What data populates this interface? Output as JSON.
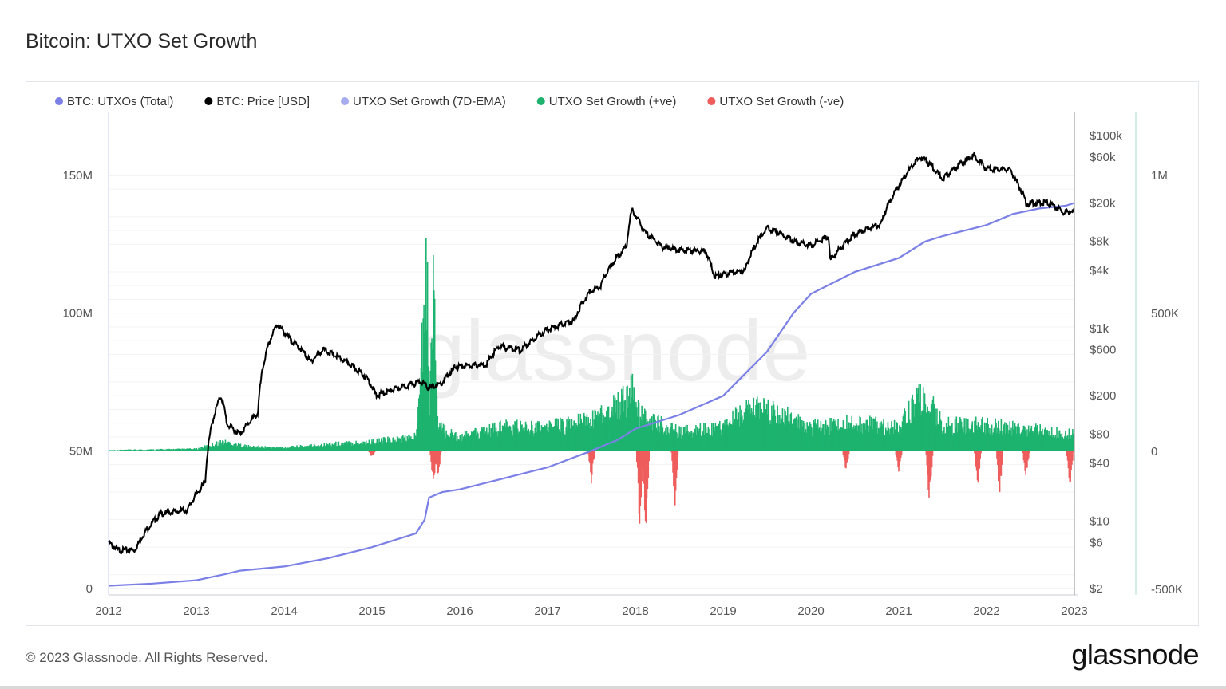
{
  "header": {
    "title": "Bitcoin: UTXO Set Growth"
  },
  "footer": {
    "copyright": "© 2023 Glassnode. All Rights Reserved.",
    "logo": "glassnode"
  },
  "watermark": "glassnode",
  "colors": {
    "utxos_total": "#7b80e6",
    "price": "#000000",
    "ema": "#a7abf0",
    "positive": "#1db36f",
    "negative": "#ee5c5c",
    "grid": "#eef0f3"
  },
  "chart_data": {
    "type": "line",
    "title": "Bitcoin: UTXO Set Growth",
    "legend_position": "top-left",
    "legend": [
      {
        "label": "BTC: UTXOs (Total)",
        "color": "#7b80e6"
      },
      {
        "label": "BTC: Price [USD]",
        "color": "#000000"
      },
      {
        "label": "UTXO Set Growth (7D-EMA)",
        "color": "#a7abf0",
        "hidden": true
      },
      {
        "label": "UTXO Set Growth (+ve)",
        "color": "#1db36f"
      },
      {
        "label": "UTXO Set Growth (-ve)",
        "color": "#ee5c5c"
      }
    ],
    "x_axis": {
      "type": "time",
      "range": [
        2012.0,
        2023.0
      ],
      "tick_labels": [
        "2012",
        "2013",
        "2014",
        "2015",
        "2016",
        "2017",
        "2018",
        "2019",
        "2020",
        "2021",
        "2022",
        "2023"
      ]
    },
    "y_left": {
      "range": [
        0,
        150000000
      ],
      "ticks": [
        0,
        50000000,
        100000000,
        150000000
      ],
      "tick_labels": [
        "0",
        "50M",
        "100M",
        "150M"
      ]
    },
    "y_price": {
      "scale": "log",
      "range": [
        2,
        100000
      ],
      "ticks": [
        2,
        6,
        10,
        40,
        80,
        200,
        600,
        1000,
        4000,
        8000,
        20000,
        60000,
        100000
      ],
      "tick_labels": [
        "$2",
        "$6",
        "$10",
        "$40",
        "$80",
        "$200",
        "$600",
        "$1k",
        "$4k",
        "$8k",
        "$20k",
        "$60k",
        "$100k"
      ]
    },
    "y_right": {
      "range": [
        -500000,
        1000000
      ],
      "ticks": [
        -500000,
        0,
        500000,
        1000000
      ],
      "tick_labels": [
        "-500K",
        "0",
        "500K",
        "1M"
      ]
    },
    "series": [
      {
        "name": "BTC: UTXOs (Total)",
        "axis": "y_left",
        "points": [
          [
            2012.0,
            1000000
          ],
          [
            2012.5,
            1800000
          ],
          [
            2013.0,
            3000000
          ],
          [
            2013.3,
            5000000
          ],
          [
            2013.5,
            6500000
          ],
          [
            2014.0,
            8000000
          ],
          [
            2014.5,
            11000000
          ],
          [
            2015.0,
            15000000
          ],
          [
            2015.5,
            20000000
          ],
          [
            2015.6,
            25000000
          ],
          [
            2015.65,
            33000000
          ],
          [
            2015.8,
            35000000
          ],
          [
            2016.0,
            36000000
          ],
          [
            2016.5,
            40000000
          ],
          [
            2017.0,
            44000000
          ],
          [
            2017.5,
            50000000
          ],
          [
            2017.8,
            54000000
          ],
          [
            2018.0,
            58000000
          ],
          [
            2018.5,
            63000000
          ],
          [
            2019.0,
            70000000
          ],
          [
            2019.5,
            86000000
          ],
          [
            2019.8,
            100000000
          ],
          [
            2020.0,
            107000000
          ],
          [
            2020.5,
            115000000
          ],
          [
            2021.0,
            120000000
          ],
          [
            2021.3,
            126000000
          ],
          [
            2021.5,
            128000000
          ],
          [
            2022.0,
            132000000
          ],
          [
            2022.3,
            136000000
          ],
          [
            2022.6,
            138000000
          ],
          [
            2022.9,
            139000000
          ],
          [
            2023.0,
            140000000
          ]
        ]
      },
      {
        "name": "BTC: Price [USD]",
        "axis": "y_price",
        "points": [
          [
            2012.0,
            6
          ],
          [
            2012.1,
            5
          ],
          [
            2012.3,
            5
          ],
          [
            2012.6,
            12
          ],
          [
            2012.9,
            13
          ],
          [
            2013.1,
            25
          ],
          [
            2013.28,
            200
          ],
          [
            2013.35,
            100
          ],
          [
            2013.5,
            80
          ],
          [
            2013.7,
            130
          ],
          [
            2013.92,
            1100
          ],
          [
            2014.05,
            800
          ],
          [
            2014.3,
            450
          ],
          [
            2014.45,
            600
          ],
          [
            2014.7,
            450
          ],
          [
            2014.95,
            300
          ],
          [
            2015.05,
            200
          ],
          [
            2015.3,
            240
          ],
          [
            2015.55,
            280
          ],
          [
            2015.65,
            240
          ],
          [
            2015.8,
            270
          ],
          [
            2015.95,
            400
          ],
          [
            2016.3,
            420
          ],
          [
            2016.45,
            650
          ],
          [
            2016.7,
            600
          ],
          [
            2016.98,
            950
          ],
          [
            2017.3,
            1200
          ],
          [
            2017.5,
            2500
          ],
          [
            2017.6,
            2700
          ],
          [
            2017.9,
            7000
          ],
          [
            2017.96,
            17000
          ],
          [
            2018.1,
            10000
          ],
          [
            2018.3,
            7000
          ],
          [
            2018.5,
            6500
          ],
          [
            2018.8,
            6300
          ],
          [
            2018.9,
            3500
          ],
          [
            2019.25,
            4000
          ],
          [
            2019.5,
            11000
          ],
          [
            2019.8,
            8000
          ],
          [
            2020.0,
            7200
          ],
          [
            2020.2,
            9000
          ],
          [
            2020.22,
            5000
          ],
          [
            2020.5,
            9500
          ],
          [
            2020.8,
            12000
          ],
          [
            2021.0,
            30000
          ],
          [
            2021.25,
            60000
          ],
          [
            2021.5,
            35000
          ],
          [
            2021.85,
            62000
          ],
          [
            2022.0,
            45000
          ],
          [
            2022.25,
            45000
          ],
          [
            2022.45,
            20000
          ],
          [
            2022.7,
            20000
          ],
          [
            2022.88,
            16000
          ],
          [
            2023.0,
            16500
          ]
        ]
      },
      {
        "name": "UTXO Set Growth (+ve)",
        "axis": "y_right",
        "points": [
          [
            2012.0,
            5000
          ],
          [
            2013.0,
            10000
          ],
          [
            2013.3,
            40000
          ],
          [
            2013.6,
            20000
          ],
          [
            2014.0,
            15000
          ],
          [
            2014.5,
            30000
          ],
          [
            2015.0,
            40000
          ],
          [
            2015.5,
            60000
          ],
          [
            2015.55,
            400000
          ],
          [
            2015.6,
            600000
          ],
          [
            2015.62,
            800000
          ],
          [
            2015.66,
            200000
          ],
          [
            2015.7,
            750000
          ],
          [
            2015.75,
            100000
          ],
          [
            2016.0,
            60000
          ],
          [
            2016.5,
            100000
          ],
          [
            2017.0,
            100000
          ],
          [
            2017.5,
            130000
          ],
          [
            2017.9,
            220000
          ],
          [
            2017.95,
            270000
          ],
          [
            2018.05,
            150000
          ],
          [
            2018.5,
            80000
          ],
          [
            2019.0,
            100000
          ],
          [
            2019.3,
            180000
          ],
          [
            2019.6,
            160000
          ],
          [
            2020.0,
            100000
          ],
          [
            2020.5,
            120000
          ],
          [
            2021.0,
            100000
          ],
          [
            2021.15,
            190000
          ],
          [
            2021.3,
            230000
          ],
          [
            2021.5,
            110000
          ],
          [
            2022.0,
            110000
          ],
          [
            2022.5,
            90000
          ],
          [
            2023.0,
            70000
          ]
        ]
      },
      {
        "name": "UTXO Set Growth (-ve)",
        "axis": "y_right",
        "points": [
          [
            2015.0,
            -20000
          ],
          [
            2015.7,
            -120000
          ],
          [
            2015.75,
            -100000
          ],
          [
            2017.5,
            -110000
          ],
          [
            2018.05,
            -270000
          ],
          [
            2018.12,
            -370000
          ],
          [
            2018.45,
            -200000
          ],
          [
            2020.4,
            -80000
          ],
          [
            2021.0,
            -80000
          ],
          [
            2021.35,
            -190000
          ],
          [
            2021.9,
            -130000
          ],
          [
            2022.15,
            -170000
          ],
          [
            2022.45,
            -110000
          ],
          [
            2022.95,
            -160000
          ]
        ]
      }
    ]
  }
}
